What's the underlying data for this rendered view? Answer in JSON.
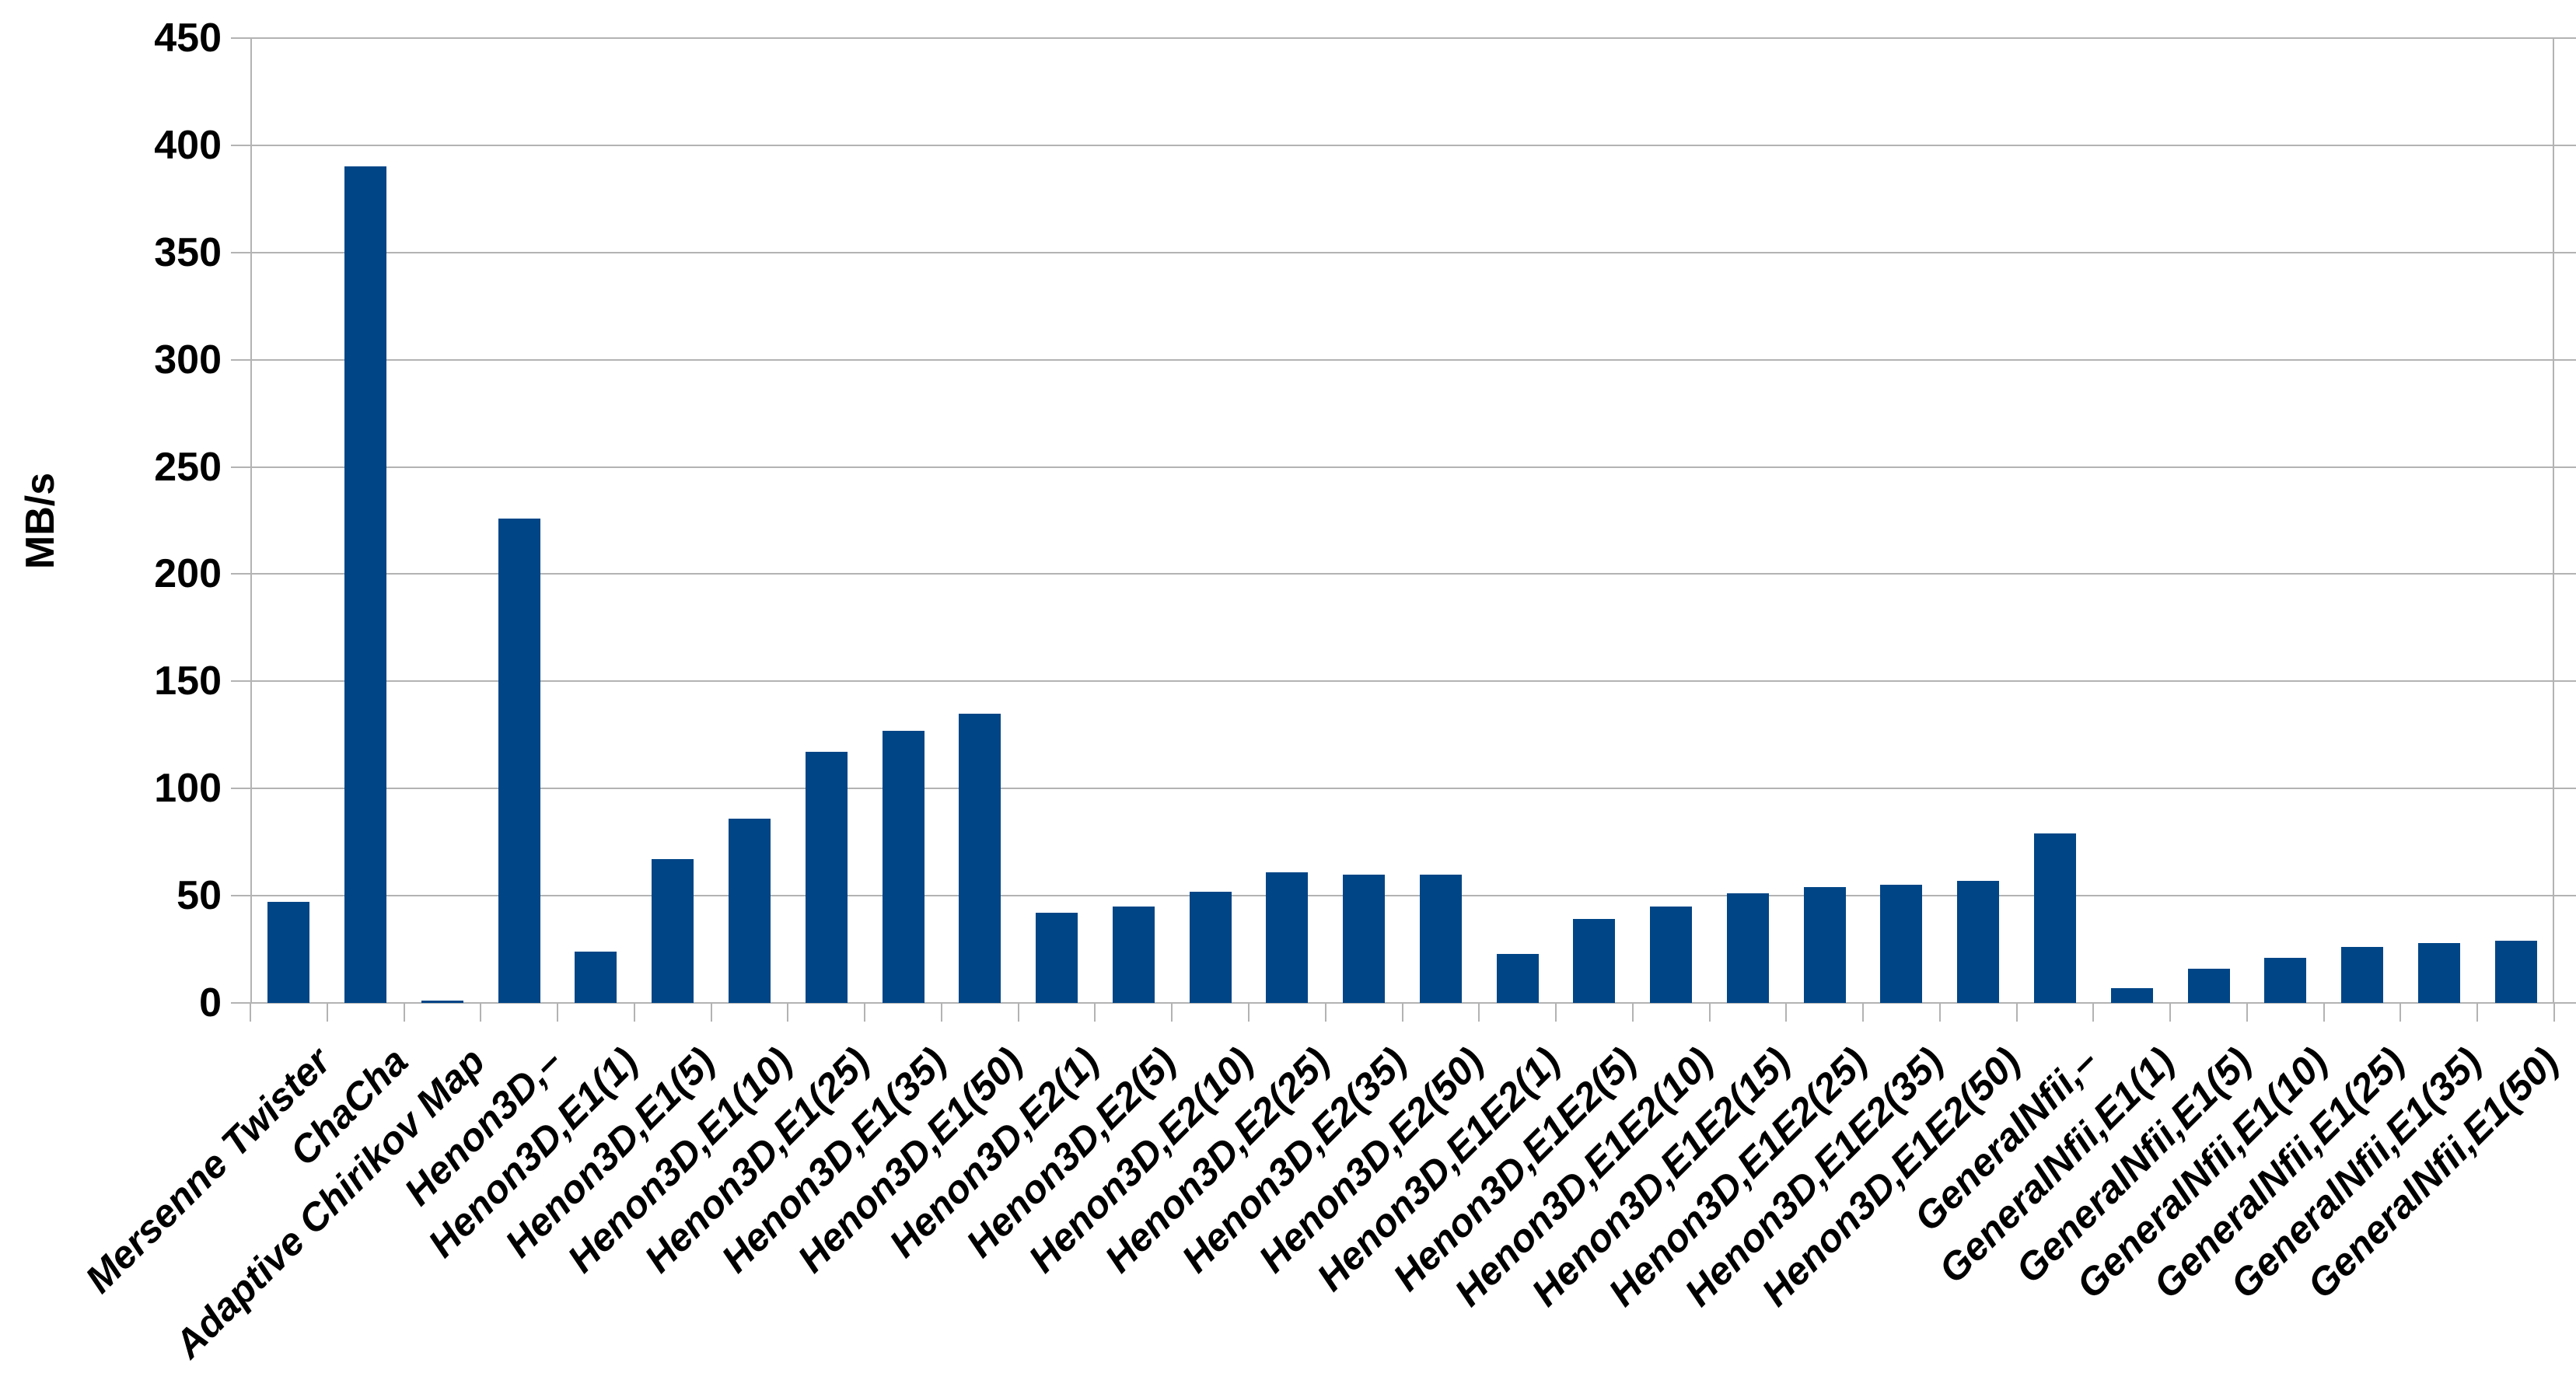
{
  "chart_data": {
    "type": "bar",
    "title": "",
    "xlabel": "",
    "ylabel": "MB/s",
    "ylim": [
      0,
      450
    ],
    "ytick_step": 50,
    "yticks": [
      0,
      50,
      100,
      150,
      200,
      250,
      300,
      350,
      400,
      450
    ],
    "grid": true,
    "legend": false,
    "colors": {
      "bar": "#004586",
      "grid": "#b3b3b3",
      "axis": "#b3b3b3",
      "text": "#000000",
      "background": "#ffffff"
    },
    "categories": [
      "Mersenne Twister",
      "ChaCha",
      "Adaptive Chirikov Map",
      "Henon3D,–",
      "Henon3D,E1(1)",
      "Henon3D,E1(5)",
      "Henon3D,E1(10)",
      "Henon3D,E1(25)",
      "Henon3D,E1(35)",
      "Henon3D,E1(50)",
      "Henon3D,E2(1)",
      "Henon3D,E2(5)",
      "Henon3D,E2(10)",
      "Henon3D,E2(25)",
      "Henon3D,E2(35)",
      "Henon3D,E2(50)",
      "Henon3D,E1E2(1)",
      "Henon3D,E1E2(5)",
      "Henon3D,E1E2(10)",
      "Henon3D,E1E2(15)",
      "Henon3D,E1E2(25)",
      "Henon3D,E1E2(35)",
      "Henon3D,E1E2(50)",
      "GeneralNfii,–",
      "GeneralNfii,E1(1)",
      "GeneralNfii,E1(5)",
      "GeneralNfii,E1(10)",
      "GeneralNfii,E1(25)",
      "GeneralNfii,E1(35)",
      "GeneralNfii,E1(50)"
    ],
    "values": [
      47,
      390,
      1,
      226,
      24,
      67,
      86,
      117,
      127,
      135,
      42,
      45,
      52,
      61,
      60,
      60,
      23,
      39,
      45,
      51,
      54,
      55,
      57,
      79,
      7,
      16,
      21,
      26,
      28,
      29
    ]
  }
}
